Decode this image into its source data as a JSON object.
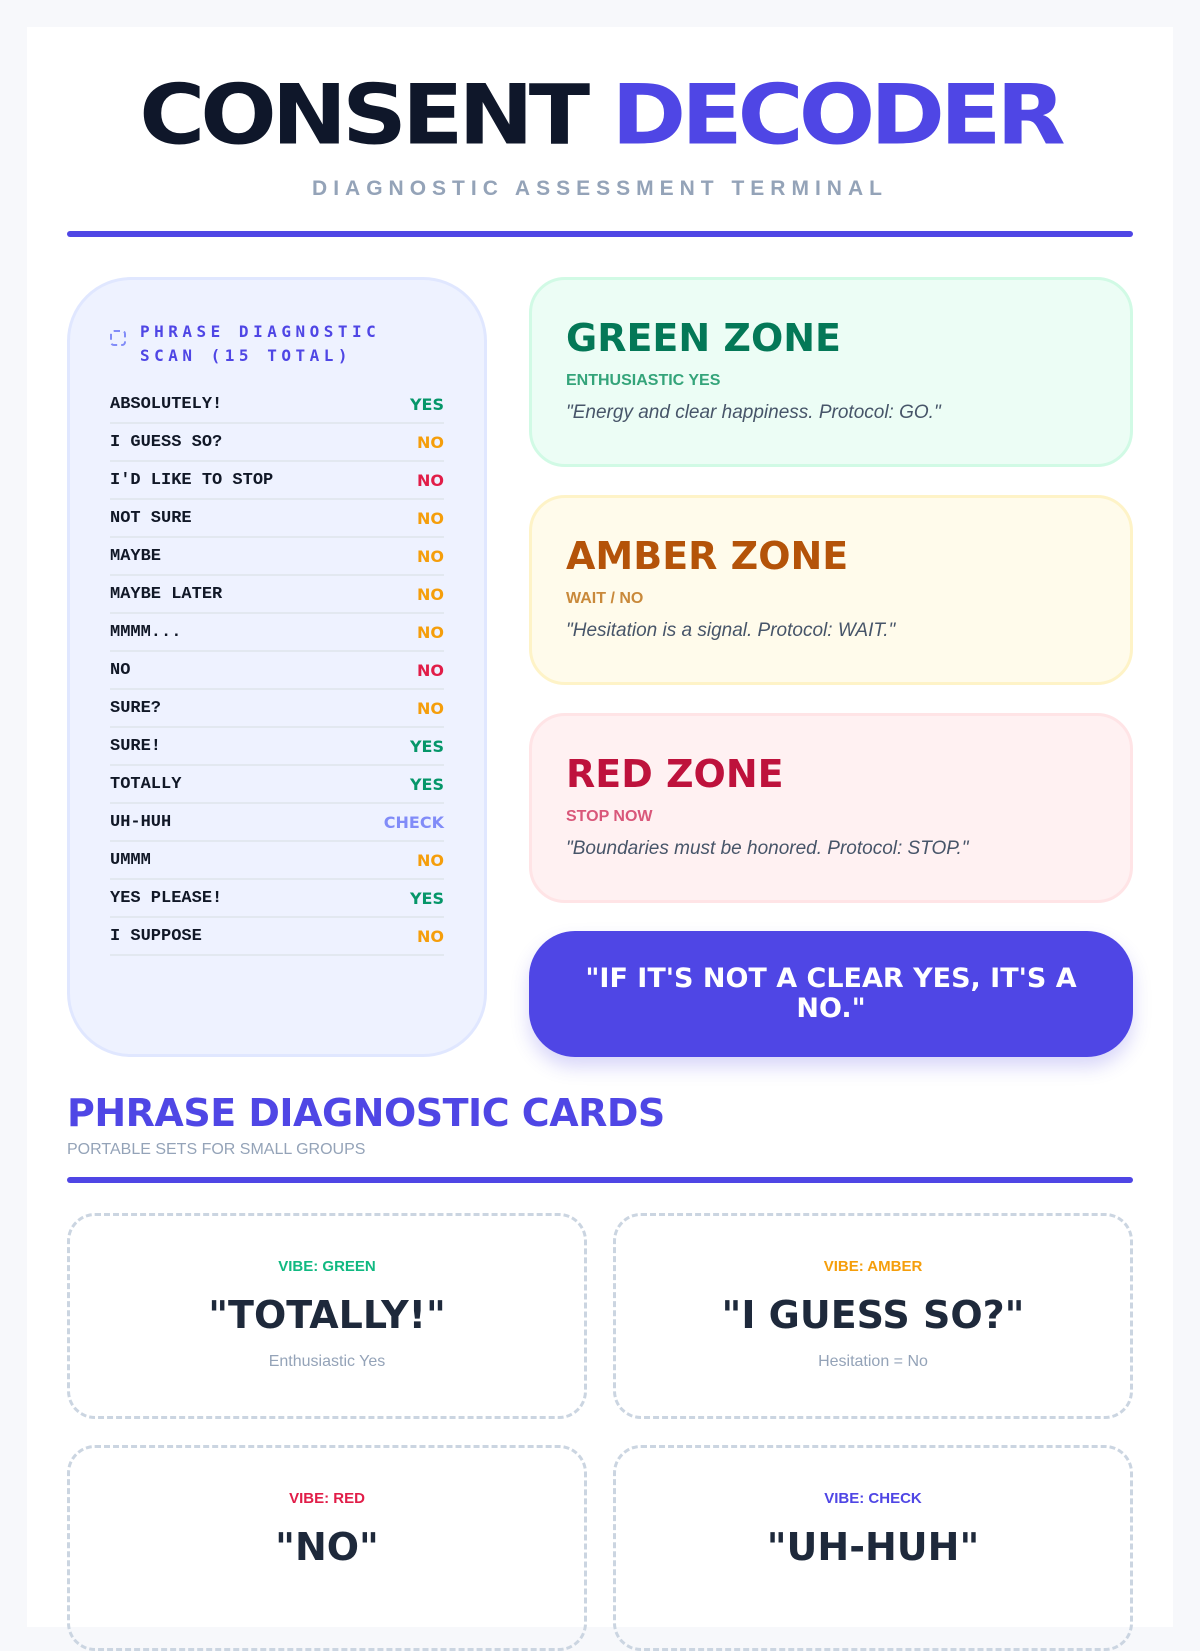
{
  "header": {
    "title_part1": "CONSENT",
    "title_part2": "DECODER",
    "subtitle": "DIAGNOSTIC ASSESSMENT TERMINAL"
  },
  "scan": {
    "title": "PHRASE DIAGNOSTIC SCAN (15 TOTAL)",
    "rows": [
      {
        "phrase": "ABSOLUTELY!",
        "verdict": "YES",
        "color": "#059669"
      },
      {
        "phrase": "I GUESS SO?",
        "verdict": "NO",
        "color": "#f59e0b"
      },
      {
        "phrase": "I'D LIKE TO STOP",
        "verdict": "NO",
        "color": "#e11d48"
      },
      {
        "phrase": "NOT SURE",
        "verdict": "NO",
        "color": "#f59e0b"
      },
      {
        "phrase": "MAYBE",
        "verdict": "NO",
        "color": "#f59e0b"
      },
      {
        "phrase": "MAYBE LATER",
        "verdict": "NO",
        "color": "#f59e0b"
      },
      {
        "phrase": "MMMM...",
        "verdict": "NO",
        "color": "#f59e0b"
      },
      {
        "phrase": "NO",
        "verdict": "NO",
        "color": "#e11d48"
      },
      {
        "phrase": "SURE?",
        "verdict": "NO",
        "color": "#f59e0b"
      },
      {
        "phrase": "SURE!",
        "verdict": "YES",
        "color": "#059669"
      },
      {
        "phrase": "TOTALLY",
        "verdict": "YES",
        "color": "#059669"
      },
      {
        "phrase": "UH-HUH",
        "verdict": "CHECK",
        "color": "#818cf8"
      },
      {
        "phrase": "UMMM",
        "verdict": "NO",
        "color": "#f59e0b"
      },
      {
        "phrase": "YES PLEASE!",
        "verdict": "YES",
        "color": "#059669"
      },
      {
        "phrase": "I SUPPOSE",
        "verdict": "NO",
        "color": "#f59e0b"
      }
    ]
  },
  "zones": {
    "green": {
      "title": "GREEN ZONE",
      "sub": "ENTHUSIASTIC YES",
      "quote": "\"Energy and clear happiness. Protocol: GO.\""
    },
    "amber": {
      "title": "AMBER ZONE",
      "sub": "WAIT / NO",
      "quote": "\"Hesitation is a signal. Protocol: WAIT.\""
    },
    "red": {
      "title": "RED ZONE",
      "sub": "STOP NOW",
      "quote": "\"Boundaries must be honored. Protocol: STOP.\""
    }
  },
  "rule_banner": "\"IF IT'S NOT A CLEAR YES, IT'S A NO.\"",
  "cards_section": {
    "title": "PHRASE DIAGNOSTIC CARDS",
    "subtitle": "PORTABLE SETS FOR SMALL GROUPS",
    "cards": [
      {
        "vibe": "VIBE: GREEN",
        "phrase": "\"TOTALLY!\"",
        "meaning": "Enthusiastic Yes",
        "color": "#10b981"
      },
      {
        "vibe": "VIBE: AMBER",
        "phrase": "\"I GUESS SO?\"",
        "meaning": "Hesitation = No",
        "color": "#f59e0b"
      },
      {
        "vibe": "VIBE: RED",
        "phrase": "\"NO\"",
        "meaning": "",
        "color": "#e11d48"
      },
      {
        "vibe": "VIBE: CHECK",
        "phrase": "\"UH-HUH\"",
        "meaning": "",
        "color": "#4f46e5"
      }
    ]
  }
}
